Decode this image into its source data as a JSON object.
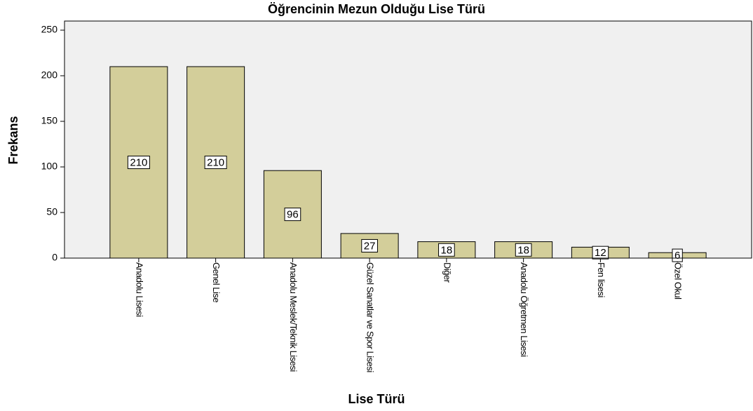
{
  "chart_data": {
    "type": "bar",
    "title": "Öğrencinin Mezun Olduğu Lise Türü",
    "x_label": "Lise Türü",
    "y_label": "Frekans",
    "categories": [
      "Anadolu Lisesi",
      "Genel Lise",
      "Anadolu Meslek/Teknik Lisesi",
      "Güzel Sanatlar ve Spor Lisesi",
      "Diğer",
      "Anadolu Öğretmen Lisesi",
      "Fen lisesi",
      "Özel Okul"
    ],
    "values": [
      210,
      210,
      96,
      27,
      18,
      18,
      12,
      6
    ],
    "color": "#d3ce9a",
    "ylim": [
      0,
      260
    ],
    "yticks": [
      0,
      50,
      100,
      150,
      200,
      250
    ],
    "grid": false
  }
}
